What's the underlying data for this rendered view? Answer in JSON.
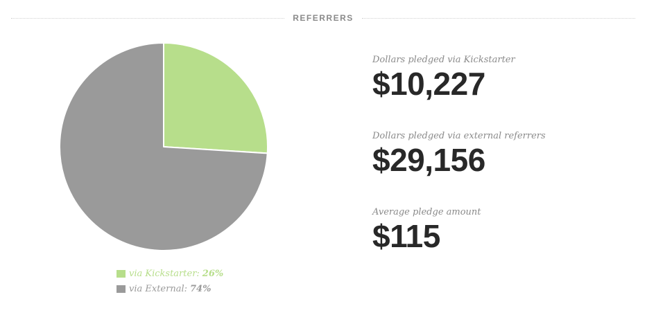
{
  "header": {
    "title": "REFERRERS"
  },
  "chart_data": {
    "type": "pie",
    "slices": [
      {
        "label": "via Kickstarter:",
        "percent": 26,
        "percent_label": "26%",
        "color": "#b7de8b"
      },
      {
        "label": "via External:",
        "percent": 74,
        "percent_label": "74%",
        "color": "#9a9a9a"
      }
    ],
    "legend_placement": "bottom"
  },
  "stats": [
    {
      "label": "Dollars pledged via Kickstarter",
      "value": "$10,227"
    },
    {
      "label": "Dollars pledged via external referrers",
      "value": "$29,156"
    },
    {
      "label": "Average pledge amount",
      "value": "$115"
    }
  ]
}
